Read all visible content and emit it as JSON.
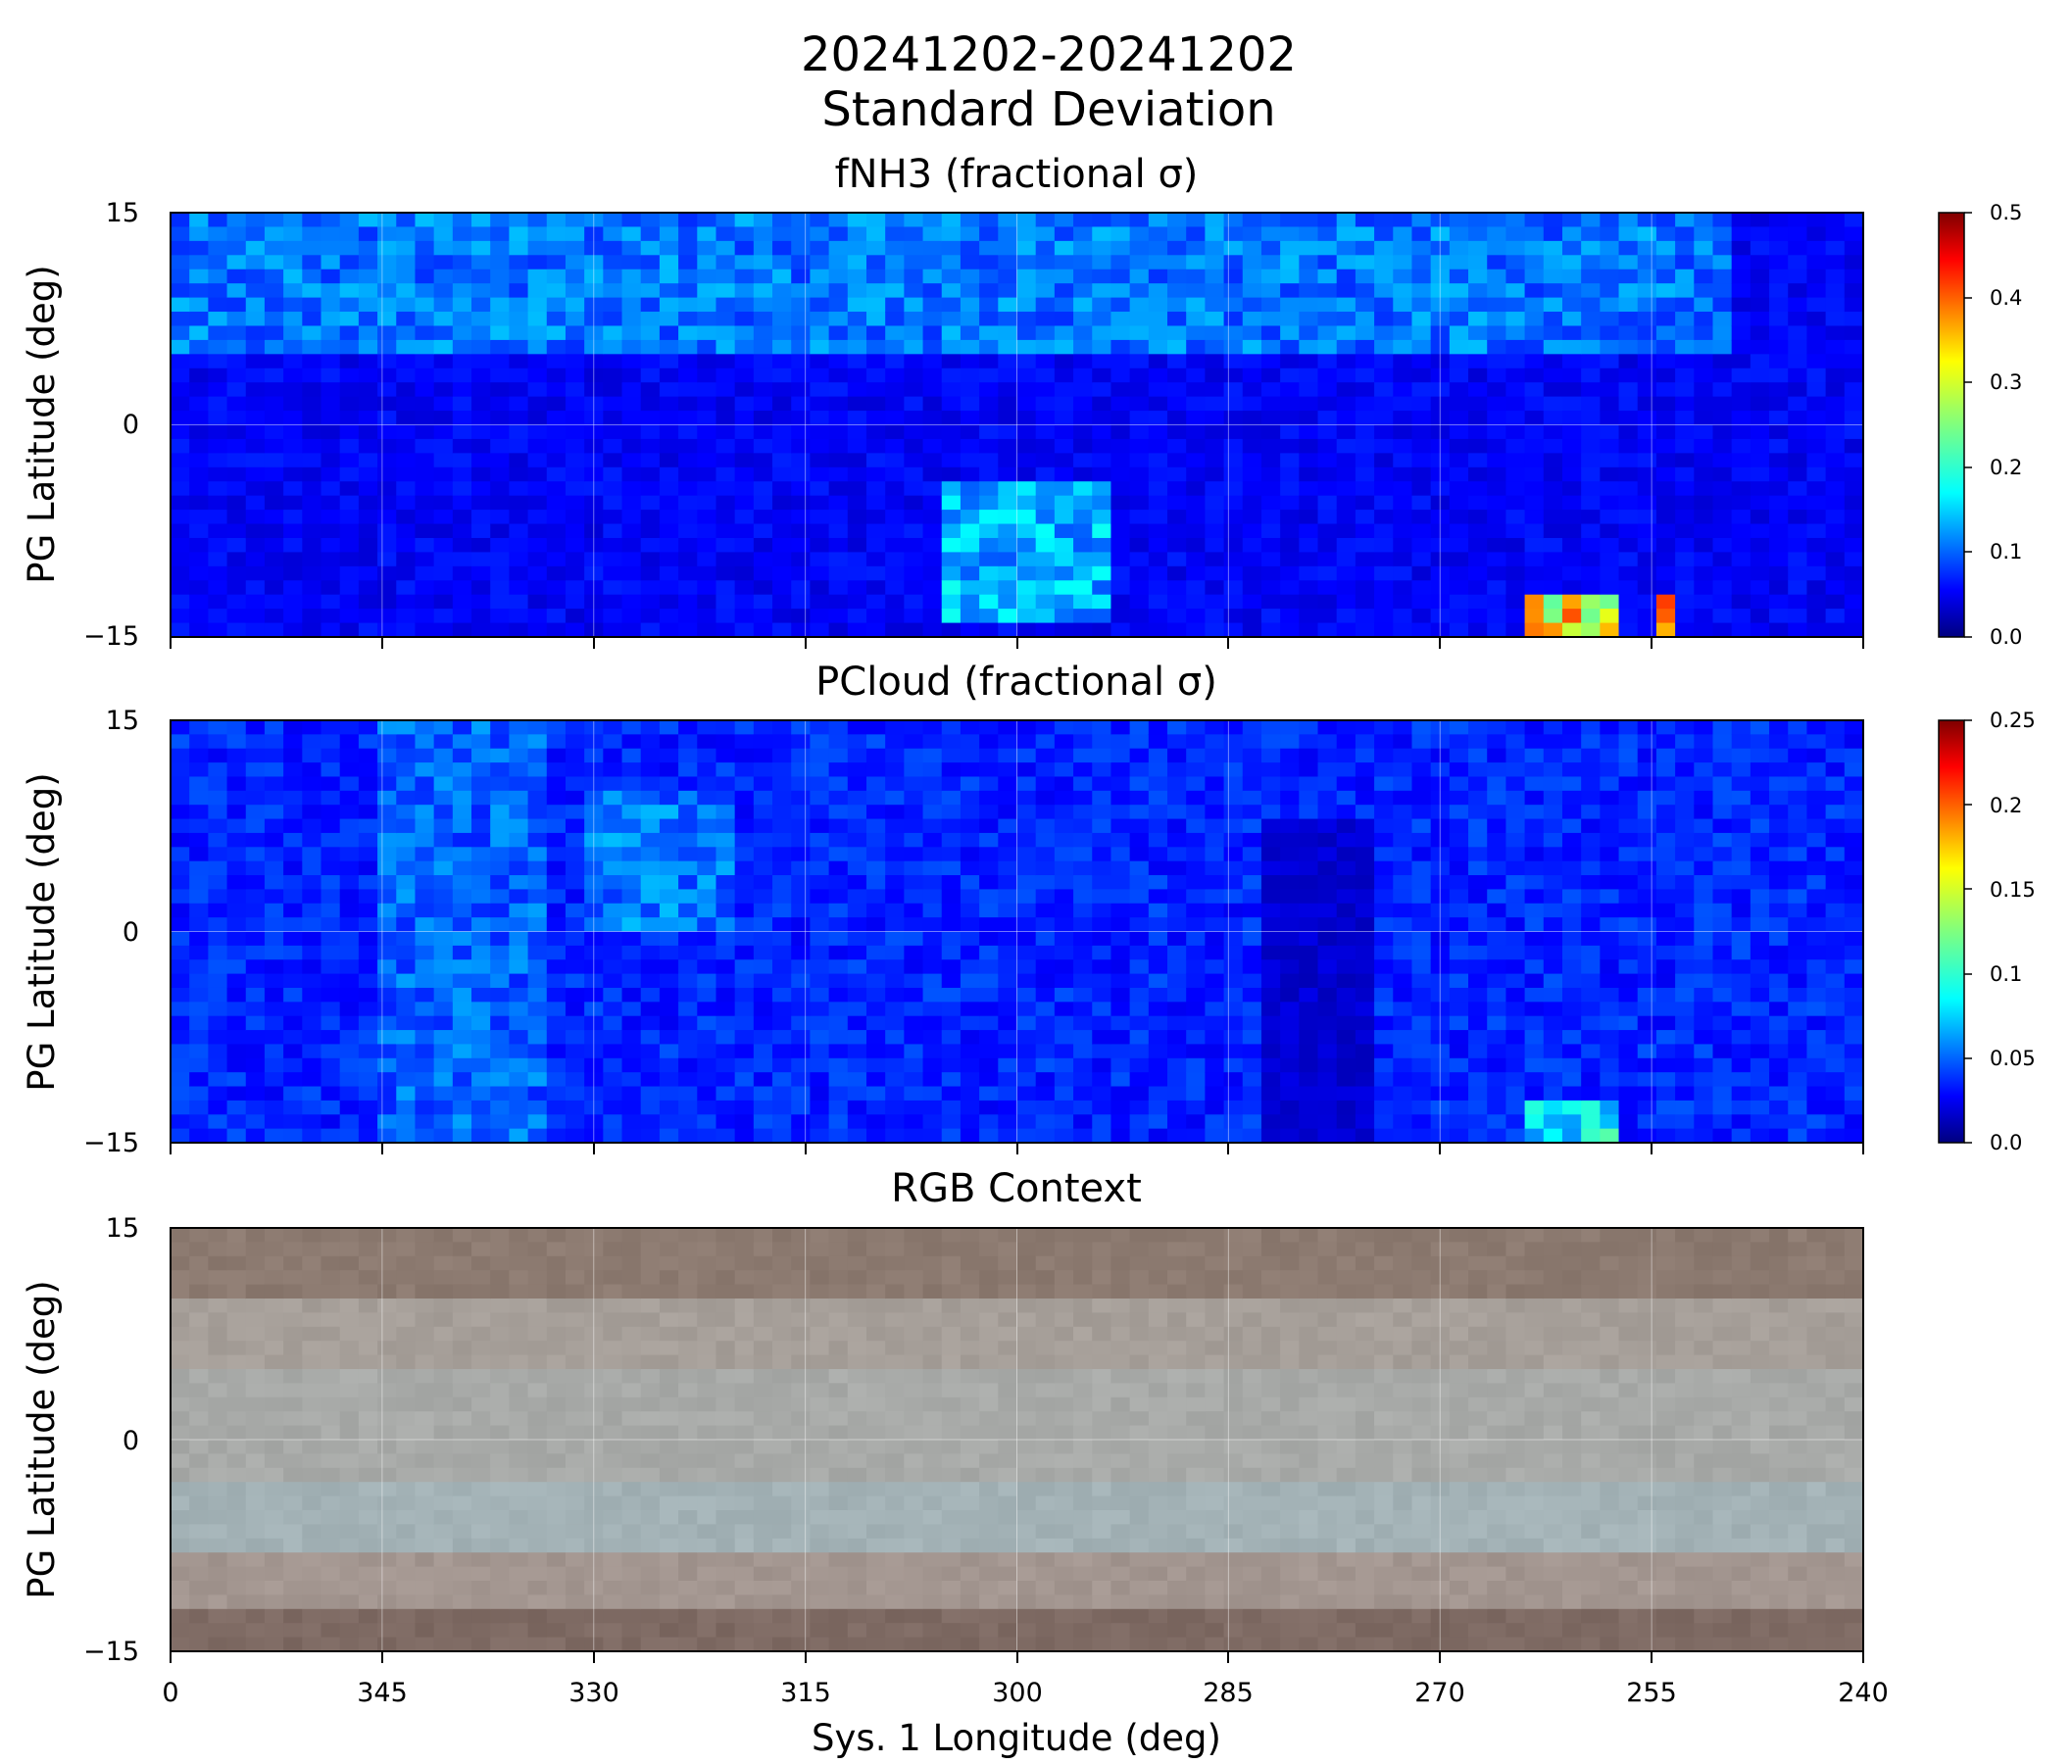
{
  "figure": {
    "title_line1": "20241202-20241202",
    "title_line2": "Standard Deviation",
    "xlabel": "Sys. 1 Longitude (deg)"
  },
  "chart_data": [
    {
      "type": "heatmap",
      "title": "fNH3 (fractional σ)",
      "ylabel": "PG Latitude (deg)",
      "xlim": [
        360,
        240
      ],
      "ylim": [
        -15,
        15
      ],
      "xticks": [
        "0",
        "345",
        "330",
        "315",
        "300",
        "285",
        "270",
        "255",
        "240"
      ],
      "yticks": [
        "15",
        "0",
        "−15"
      ],
      "colormap": "jet",
      "clim": [
        0,
        0.5
      ],
      "colorbar_ticks": [
        "0.5",
        "0.4",
        "0.3",
        "0.2",
        "0.1",
        "0.0"
      ],
      "grid": true,
      "typical_value": 0.06,
      "features": [
        {
          "lon": [
            360,
            250
          ],
          "lat": [
            5,
            15
          ],
          "value": 0.12
        },
        {
          "lon": [
            305,
            293
          ],
          "lat": [
            -14,
            -4
          ],
          "value": 0.15
        },
        {
          "lon": [
            264,
            258
          ],
          "lat": [
            -15,
            -12
          ],
          "value": 0.32
        },
        {
          "lon": [
            255,
            254
          ],
          "lat": [
            -15,
            -12
          ],
          "value": 0.43
        }
      ]
    },
    {
      "type": "heatmap",
      "title": "PCloud (fractional σ)",
      "ylabel": "PG Latitude (deg)",
      "xlim": [
        360,
        240
      ],
      "ylim": [
        -15,
        15
      ],
      "xticks": [
        "0",
        "345",
        "330",
        "315",
        "300",
        "285",
        "270",
        "255",
        "240"
      ],
      "yticks": [
        "15",
        "0",
        "−15"
      ],
      "colormap": "jet",
      "clim": [
        0,
        0.25
      ],
      "colorbar_ticks": [
        "0.25",
        "0.2",
        "0.15",
        "0.1",
        "0.05",
        "0.0"
      ],
      "grid": true,
      "typical_value": 0.04,
      "features": [
        {
          "lon": [
            345,
            333
          ],
          "lat": [
            -15,
            15
          ],
          "value": 0.055
        },
        {
          "lon": [
            331,
            320
          ],
          "lat": [
            0,
            10
          ],
          "value": 0.06
        },
        {
          "lon": [
            264,
            258
          ],
          "lat": [
            -15,
            -12
          ],
          "value": 0.09
        },
        {
          "lon": [
            283,
            275
          ],
          "lat": [
            -15,
            8
          ],
          "value": 0.02
        }
      ]
    },
    {
      "type": "heatmap",
      "title": "RGB Context",
      "ylabel": "PG Latitude (deg)",
      "xlim": [
        360,
        240
      ],
      "ylim": [
        -15,
        15
      ],
      "xticks": [
        "0",
        "345",
        "330",
        "315",
        "300",
        "285",
        "270",
        "255",
        "240"
      ],
      "yticks": [
        "15",
        "0",
        "−15"
      ],
      "grid": true,
      "bands": [
        {
          "lat": [
            15,
            10
          ],
          "color": "#8c7a70"
        },
        {
          "lat": [
            10,
            5
          ],
          "color": "#a69f99"
        },
        {
          "lat": [
            5,
            -3
          ],
          "color": "#a8aaa8"
        },
        {
          "lat": [
            -3,
            -8
          ],
          "color": "#a3b2b6"
        },
        {
          "lat": [
            -8,
            -12
          ],
          "color": "#a39690"
        },
        {
          "lat": [
            -12,
            -15
          ],
          "color": "#7e6a63"
        }
      ]
    }
  ]
}
